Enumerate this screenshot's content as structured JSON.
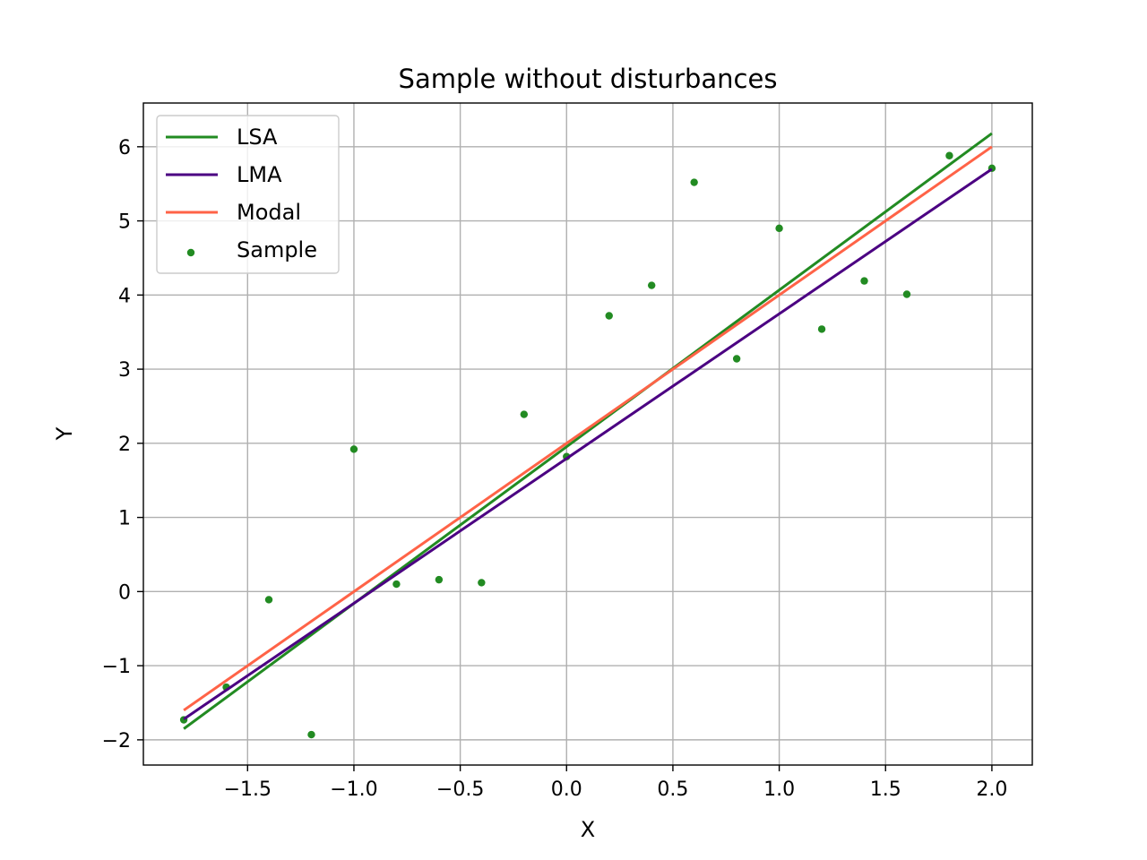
{
  "chart_data": {
    "type": "scatter",
    "title": "Sample without disturbances",
    "xlabel": "X",
    "ylabel": "Y",
    "xlim": [
      -1.99,
      2.19
    ],
    "ylim": [
      -2.34,
      6.59
    ],
    "xticks": [
      -1.5,
      -1.0,
      -0.5,
      0.0,
      0.5,
      1.0,
      1.5,
      2.0
    ],
    "xtick_labels": [
      "−1.5",
      "−1.0",
      "−0.5",
      "0.0",
      "0.5",
      "1.0",
      "1.5",
      "2.0"
    ],
    "yticks": [
      -2,
      -1,
      0,
      1,
      2,
      3,
      4,
      5,
      6
    ],
    "ytick_labels": [
      "−2",
      "−1",
      "0",
      "1",
      "2",
      "3",
      "4",
      "5",
      "6"
    ],
    "grid": true,
    "legend_position": "upper-left",
    "lines": [
      {
        "name": "LSA",
        "color": "#228b22",
        "x": [
          -1.8,
          2.0
        ],
        "y": [
          -1.85,
          6.18
        ]
      },
      {
        "name": "LMA",
        "color": "#4b0082",
        "x": [
          -1.8,
          2.0
        ],
        "y": [
          -1.72,
          5.7
        ]
      },
      {
        "name": "Modal",
        "color": "#ff6347",
        "x": [
          -1.8,
          2.0
        ],
        "y": [
          -1.6,
          6.0
        ]
      }
    ],
    "scatter": {
      "name": "Sample",
      "color": "#228b22",
      "points": [
        [
          -1.8,
          -1.73
        ],
        [
          -1.6,
          -1.29
        ],
        [
          -1.4,
          -0.11
        ],
        [
          -1.2,
          -1.93
        ],
        [
          -1.0,
          1.92
        ],
        [
          -0.8,
          0.1
        ],
        [
          -0.6,
          0.16
        ],
        [
          -0.4,
          0.12
        ],
        [
          -0.2,
          2.39
        ],
        [
          0.0,
          1.82
        ],
        [
          0.2,
          3.72
        ],
        [
          0.4,
          4.13
        ],
        [
          0.6,
          5.52
        ],
        [
          0.8,
          3.14
        ],
        [
          1.0,
          4.9
        ],
        [
          1.2,
          3.54
        ],
        [
          1.4,
          4.19
        ],
        [
          1.6,
          4.01
        ],
        [
          1.8,
          5.88
        ],
        [
          2.0,
          5.71
        ]
      ]
    }
  }
}
